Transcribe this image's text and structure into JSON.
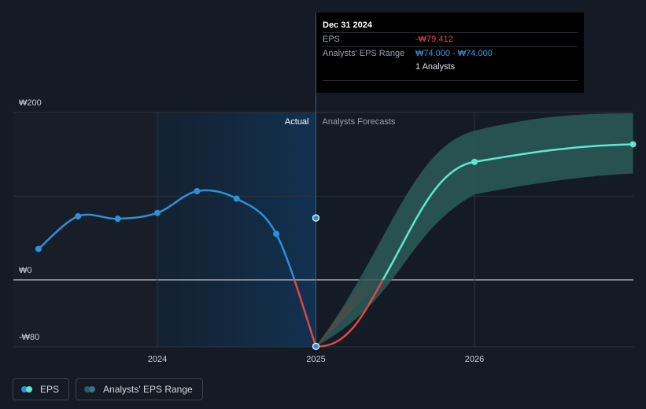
{
  "chart_data": {
    "type": "line",
    "y_ticks": [
      {
        "value": 200,
        "label": "₩200"
      },
      {
        "value": 0,
        "label": "₩0"
      },
      {
        "value": -80,
        "label": "-₩80"
      }
    ],
    "x_ticks": [
      {
        "value": 2024.0,
        "label": "2024"
      },
      {
        "value": 2025.0,
        "label": "2025"
      },
      {
        "value": 2026.0,
        "label": "2026"
      }
    ],
    "xlim": [
      2023.08,
      2027.0
    ],
    "ylim": [
      -80,
      200
    ],
    "actual_label": "Actual",
    "forecast_label": "Analysts Forecasts",
    "series": [
      {
        "name": "EPS",
        "points": [
          [
            2023.25,
            37
          ],
          [
            2023.5,
            76
          ],
          [
            2023.75,
            73
          ],
          [
            2024.0,
            80
          ],
          [
            2024.25,
            106
          ],
          [
            2024.5,
            97
          ],
          [
            2024.75,
            55
          ],
          [
            2025.0,
            -79.412
          ]
        ]
      },
      {
        "name": "EPS forecast",
        "points": [
          [
            2025.0,
            -79.412
          ],
          [
            2026.0,
            141
          ],
          [
            2027.0,
            162
          ]
        ]
      }
    ],
    "extra_point": [
      2025.0,
      74
    ],
    "range_band": {
      "x": [
        2025.0,
        2026.0,
        2027.0
      ],
      "low": [
        -79.412,
        102,
        127
      ],
      "high": [
        -79.412,
        178,
        199
      ]
    }
  },
  "tooltip": {
    "date": "Dec 31 2024",
    "eps_label": "EPS",
    "eps_value": "-₩79.412",
    "range_label": "Analysts' EPS Range",
    "range_value": "₩74.000 - ₩74.000",
    "analysts": "1 Analysts"
  },
  "legend": {
    "eps_label": "EPS",
    "range_label": "Analysts' EPS Range"
  },
  "colors": {
    "background": "#151b24",
    "eps_line": "#2f8fd8",
    "eps_negative": "#e0483f",
    "forecast_line": "#5ee8d0",
    "range_fill": "#2b5c59",
    "actual_shade": "#102a44",
    "grid": "#2d333d",
    "zero_line": "#b9bec6"
  }
}
